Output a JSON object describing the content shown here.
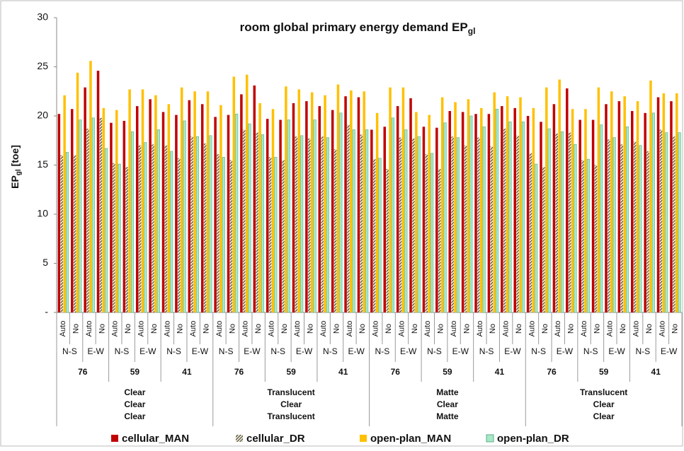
{
  "chart_data": {
    "type": "bar",
    "title": "room global primary energy demand EP",
    "title_sub": "gl",
    "ylabel": "EP",
    "ylabel_sub": "gl",
    "ylabel_unit": " [toe]",
    "ylim": [
      0,
      30
    ],
    "yticks": [
      {
        "value": 0,
        "label": "-"
      },
      5,
      10,
      15,
      20,
      25,
      30
    ],
    "categories": [
      "Auto",
      "No",
      "Auto",
      "No",
      "Auto",
      "No",
      "Auto",
      "No",
      "Auto",
      "No",
      "Auto",
      "No",
      "Auto",
      "No",
      "Auto",
      "No",
      "Auto",
      "No",
      "Auto",
      "No",
      "Auto",
      "No",
      "Auto",
      "No",
      "Auto",
      "No",
      "Auto",
      "No",
      "Auto",
      "No",
      "Auto",
      "No",
      "Auto",
      "No",
      "Auto",
      "No",
      "Auto",
      "No",
      "Auto",
      "No",
      "Auto",
      "No",
      "Auto",
      "No",
      "Auto",
      "No",
      "Auto",
      "No"
    ],
    "orientations": [
      "N-S",
      "E-W",
      "N-S",
      "E-W",
      "N-S",
      "E-W",
      "N-S",
      "E-W",
      "N-S",
      "E-W",
      "N-S",
      "E-W",
      "N-S",
      "E-W",
      "N-S",
      "E-W",
      "N-S",
      "E-W",
      "N-S",
      "E-W",
      "N-S",
      "E-W",
      "N-S",
      "E-W"
    ],
    "wwr": [
      "76",
      "59",
      "41",
      "76",
      "59",
      "41",
      "76",
      "59",
      "41",
      "76",
      "59",
      "41"
    ],
    "glazing": [
      [
        "Clear",
        "Clear",
        "Clear"
      ],
      [
        "Translucent",
        "Clear",
        "Translucent"
      ],
      [
        "Matte",
        "Clear",
        "Matte"
      ],
      [
        "Translucent",
        "Clear",
        "Clear"
      ]
    ],
    "series": [
      {
        "name": "cellular_MAN",
        "color": "#c00000",
        "hatch": false,
        "values": [
          20.2,
          20.7,
          22.9,
          24.6,
          19.3,
          19.5,
          21.0,
          21.7,
          20.4,
          20.1,
          21.6,
          21.2,
          19.9,
          20.1,
          22.2,
          23.1,
          19.7,
          19.6,
          21.3,
          21.5,
          21.0,
          20.6,
          22.0,
          21.9,
          18.6,
          18.9,
          21.0,
          21.8,
          18.9,
          18.8,
          20.5,
          20.4,
          20.2,
          20.2,
          21.0,
          20.8,
          20.0,
          19.4,
          21.2,
          22.8,
          19.6,
          19.6,
          21.2,
          21.5,
          20.5,
          20.3,
          21.9,
          21.5
        ]
      },
      {
        "name": "cellular_DR",
        "color": "#3a3a2a",
        "hatch": true,
        "values": [
          16.0,
          16.0,
          18.7,
          19.8,
          15.2,
          14.8,
          17.0,
          17.1,
          17.0,
          15.7,
          17.9,
          17.2,
          16.1,
          15.5,
          18.6,
          18.3,
          15.8,
          15.5,
          17.9,
          17.7,
          17.9,
          16.6,
          19.1,
          18.1,
          15.6,
          14.6,
          17.8,
          17.7,
          16.1,
          14.6,
          17.9,
          17.0,
          17.8,
          16.9,
          18.7,
          18.0,
          16.2,
          14.8,
          18.2,
          18.3,
          15.5,
          15.0,
          17.6,
          17.1,
          17.4,
          16.4,
          18.6,
          17.9
        ]
      },
      {
        "name": "open-plan_MAN",
        "color": "#ffc000",
        "hatch": false,
        "values": [
          22.1,
          24.4,
          25.6,
          20.8,
          20.6,
          22.7,
          22.7,
          22.1,
          21.2,
          22.9,
          22.5,
          22.5,
          21.1,
          24.0,
          24.2,
          21.3,
          20.7,
          23.0,
          22.7,
          22.4,
          22.1,
          23.2,
          22.6,
          22.5,
          20.3,
          22.9,
          22.9,
          20.4,
          20.1,
          21.9,
          21.4,
          21.7,
          20.8,
          22.4,
          22.0,
          21.9,
          20.8,
          22.9,
          23.7,
          20.7,
          20.7,
          22.9,
          22.5,
          22.0,
          21.5,
          23.6,
          22.3,
          22.3
        ]
      },
      {
        "name": "open-plan_DR",
        "color": "#a6e8c8",
        "hatch": false,
        "values": [
          16.3,
          19.6,
          19.8,
          16.7,
          15.1,
          18.4,
          17.3,
          18.6,
          16.4,
          19.5,
          17.9,
          18.0,
          15.8,
          20.2,
          19.2,
          18.1,
          15.8,
          19.6,
          18.0,
          19.6,
          17.8,
          20.3,
          18.6,
          18.6,
          15.7,
          19.8,
          18.6,
          17.9,
          16.2,
          19.3,
          17.8,
          20.0,
          18.9,
          20.7,
          19.4,
          19.4,
          15.1,
          18.7,
          18.4,
          17.1,
          15.6,
          19.1,
          17.8,
          18.9,
          17.0,
          20.3,
          18.3,
          18.3
        ]
      }
    ]
  }
}
